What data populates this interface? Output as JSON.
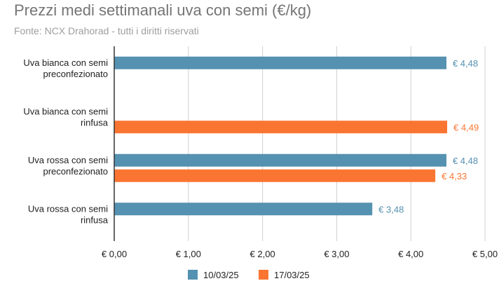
{
  "title": "Prezzi medi settimanali uva con semi (€/kg)",
  "subtitle": "Fonte: NCX Drahorad - tutti i diritti riservati",
  "chart_data": {
    "type": "bar",
    "orientation": "horizontal",
    "categories": [
      [
        "Uva bianca con semi",
        "preconfezionato"
      ],
      [
        "Uva bianca con semi",
        "rinfusa"
      ],
      [
        "Uva rossa con semi",
        "preconfezionato"
      ],
      [
        "Uva rossa con semi",
        "rinfusa"
      ]
    ],
    "series": [
      {
        "name": "10/03/25",
        "color": "#5591b1",
        "values": [
          4.48,
          null,
          4.48,
          3.48
        ],
        "labels": [
          "€ 4,48",
          null,
          "€ 4,48",
          "€ 3,48"
        ]
      },
      {
        "name": "17/03/25",
        "color": "#fb7532",
        "values": [
          null,
          4.49,
          4.33,
          null
        ],
        "labels": [
          null,
          "€ 4,49",
          "€ 4,33",
          null
        ]
      }
    ],
    "xlim": [
      0,
      5
    ],
    "ticks": [
      0,
      1,
      2,
      3,
      4,
      5
    ],
    "tick_labels": [
      "€ 0,00",
      "€ 1,00",
      "€ 2,00",
      "€ 3,00",
      "€ 4,00",
      "€ 5,00"
    ],
    "grid": true,
    "legend_position": "bottom"
  }
}
